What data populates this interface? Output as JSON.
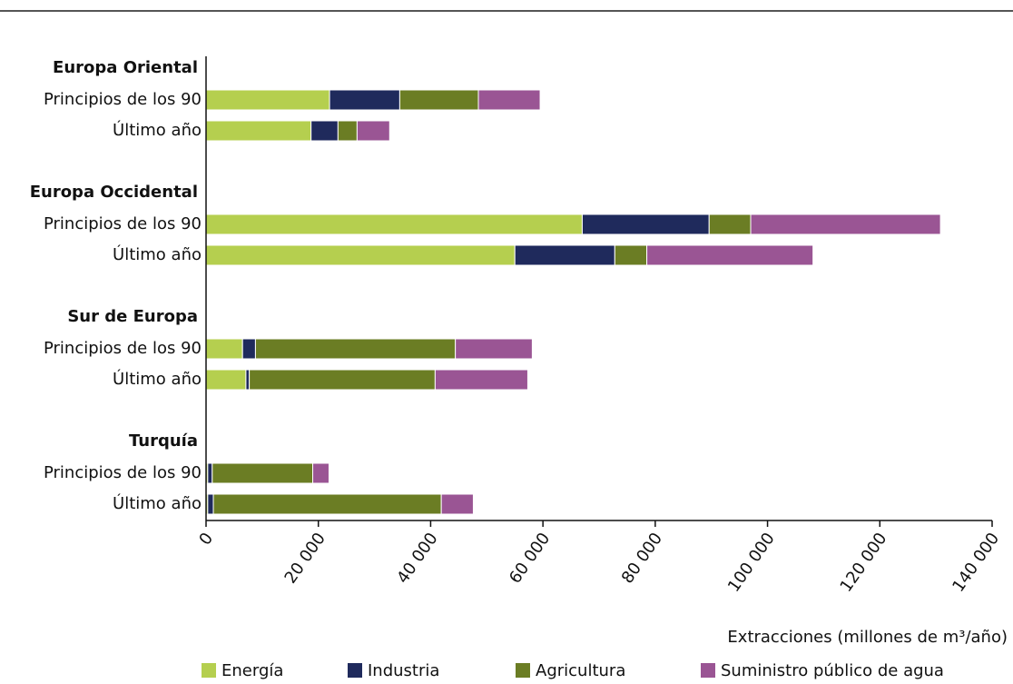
{
  "chart_data": {
    "type": "stacked-barh",
    "groups": [
      {
        "name": "Europa Oriental",
        "categories": [
          "Principios de los 90",
          "Último año"
        ]
      },
      {
        "name": "Europa Occidental",
        "categories": [
          "Principios de los 90",
          "Último año"
        ]
      },
      {
        "name": "Sur de Europa",
        "categories": [
          "Principios de los 90",
          "Último año"
        ]
      },
      {
        "name": "Turquía",
        "categories": [
          "Principios de los 90",
          "Último año"
        ]
      }
    ],
    "series": [
      {
        "name": "Energía",
        "color": "#b5cf4f",
        "values": [
          22000,
          18700,
          67000,
          55000,
          6500,
          7100,
          300,
          300
        ]
      },
      {
        "name": "Industria",
        "color": "#1f2a5c",
        "values": [
          12500,
          4800,
          22600,
          17800,
          2300,
          600,
          800,
          1000
        ]
      },
      {
        "name": "Agricultura",
        "color": "#6b7d24",
        "values": [
          14000,
          3400,
          7400,
          5700,
          35600,
          33100,
          17900,
          40600
        ]
      },
      {
        "name": "Suministro público de agua",
        "color": "#9a5594",
        "values": [
          11000,
          5800,
          33800,
          29600,
          13700,
          16500,
          2900,
          5700
        ]
      }
    ],
    "xlabel": "Extracciones (millones de m³/año)",
    "xlim": [
      0,
      140000
    ],
    "xticks": [
      0,
      {
        "value": 20000,
        "label": "20 000"
      },
      {
        "value": 40000,
        "label": "40 000"
      },
      {
        "value": 60000,
        "label": "60 000"
      },
      {
        "value": 80000,
        "label": "80 000"
      },
      {
        "value": 100000,
        "label": "100 000"
      },
      {
        "value": 120000,
        "label": "120 000"
      },
      {
        "value": 140000,
        "label": "140 000"
      }
    ]
  }
}
